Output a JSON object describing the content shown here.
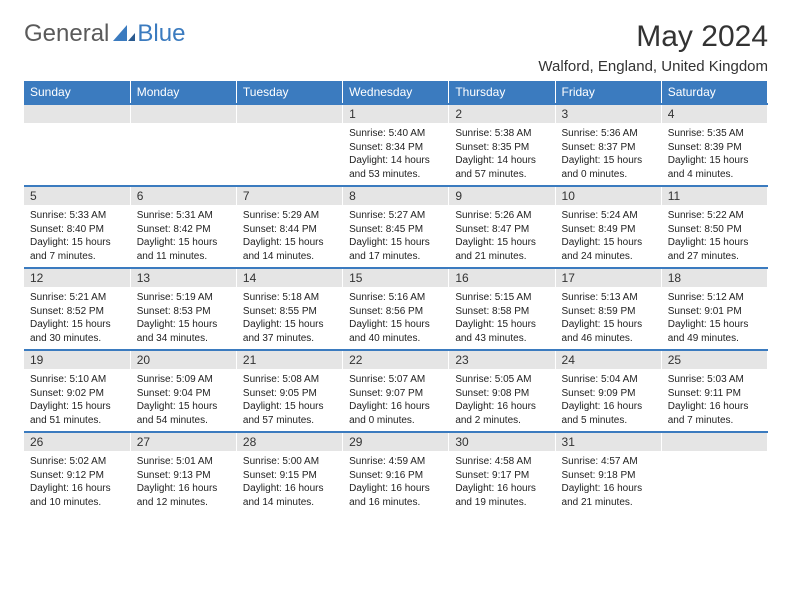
{
  "brand": {
    "text1": "General",
    "text2": "Blue"
  },
  "title": "May 2024",
  "location": "Walford, England, United Kingdom",
  "colors": {
    "header_bg": "#3b7bbf",
    "header_text": "#ffffff",
    "daynum_bg": "#e5e5e5",
    "rule": "#3b7bbf",
    "body_text": "#222222",
    "page_bg": "#ffffff"
  },
  "day_headers": [
    "Sunday",
    "Monday",
    "Tuesday",
    "Wednesday",
    "Thursday",
    "Friday",
    "Saturday"
  ],
  "weeks": [
    [
      null,
      null,
      null,
      {
        "n": "1",
        "sr": "5:40 AM",
        "ss": "8:34 PM",
        "dl": "14 hours and 53 minutes."
      },
      {
        "n": "2",
        "sr": "5:38 AM",
        "ss": "8:35 PM",
        "dl": "14 hours and 57 minutes."
      },
      {
        "n": "3",
        "sr": "5:36 AM",
        "ss": "8:37 PM",
        "dl": "15 hours and 0 minutes."
      },
      {
        "n": "4",
        "sr": "5:35 AM",
        "ss": "8:39 PM",
        "dl": "15 hours and 4 minutes."
      }
    ],
    [
      {
        "n": "5",
        "sr": "5:33 AM",
        "ss": "8:40 PM",
        "dl": "15 hours and 7 minutes."
      },
      {
        "n": "6",
        "sr": "5:31 AM",
        "ss": "8:42 PM",
        "dl": "15 hours and 11 minutes."
      },
      {
        "n": "7",
        "sr": "5:29 AM",
        "ss": "8:44 PM",
        "dl": "15 hours and 14 minutes."
      },
      {
        "n": "8",
        "sr": "5:27 AM",
        "ss": "8:45 PM",
        "dl": "15 hours and 17 minutes."
      },
      {
        "n": "9",
        "sr": "5:26 AM",
        "ss": "8:47 PM",
        "dl": "15 hours and 21 minutes."
      },
      {
        "n": "10",
        "sr": "5:24 AM",
        "ss": "8:49 PM",
        "dl": "15 hours and 24 minutes."
      },
      {
        "n": "11",
        "sr": "5:22 AM",
        "ss": "8:50 PM",
        "dl": "15 hours and 27 minutes."
      }
    ],
    [
      {
        "n": "12",
        "sr": "5:21 AM",
        "ss": "8:52 PM",
        "dl": "15 hours and 30 minutes."
      },
      {
        "n": "13",
        "sr": "5:19 AM",
        "ss": "8:53 PM",
        "dl": "15 hours and 34 minutes."
      },
      {
        "n": "14",
        "sr": "5:18 AM",
        "ss": "8:55 PM",
        "dl": "15 hours and 37 minutes."
      },
      {
        "n": "15",
        "sr": "5:16 AM",
        "ss": "8:56 PM",
        "dl": "15 hours and 40 minutes."
      },
      {
        "n": "16",
        "sr": "5:15 AM",
        "ss": "8:58 PM",
        "dl": "15 hours and 43 minutes."
      },
      {
        "n": "17",
        "sr": "5:13 AM",
        "ss": "8:59 PM",
        "dl": "15 hours and 46 minutes."
      },
      {
        "n": "18",
        "sr": "5:12 AM",
        "ss": "9:01 PM",
        "dl": "15 hours and 49 minutes."
      }
    ],
    [
      {
        "n": "19",
        "sr": "5:10 AM",
        "ss": "9:02 PM",
        "dl": "15 hours and 51 minutes."
      },
      {
        "n": "20",
        "sr": "5:09 AM",
        "ss": "9:04 PM",
        "dl": "15 hours and 54 minutes."
      },
      {
        "n": "21",
        "sr": "5:08 AM",
        "ss": "9:05 PM",
        "dl": "15 hours and 57 minutes."
      },
      {
        "n": "22",
        "sr": "5:07 AM",
        "ss": "9:07 PM",
        "dl": "16 hours and 0 minutes."
      },
      {
        "n": "23",
        "sr": "5:05 AM",
        "ss": "9:08 PM",
        "dl": "16 hours and 2 minutes."
      },
      {
        "n": "24",
        "sr": "5:04 AM",
        "ss": "9:09 PM",
        "dl": "16 hours and 5 minutes."
      },
      {
        "n": "25",
        "sr": "5:03 AM",
        "ss": "9:11 PM",
        "dl": "16 hours and 7 minutes."
      }
    ],
    [
      {
        "n": "26",
        "sr": "5:02 AM",
        "ss": "9:12 PM",
        "dl": "16 hours and 10 minutes."
      },
      {
        "n": "27",
        "sr": "5:01 AM",
        "ss": "9:13 PM",
        "dl": "16 hours and 12 minutes."
      },
      {
        "n": "28",
        "sr": "5:00 AM",
        "ss": "9:15 PM",
        "dl": "16 hours and 14 minutes."
      },
      {
        "n": "29",
        "sr": "4:59 AM",
        "ss": "9:16 PM",
        "dl": "16 hours and 16 minutes."
      },
      {
        "n": "30",
        "sr": "4:58 AM",
        "ss": "9:17 PM",
        "dl": "16 hours and 19 minutes."
      },
      {
        "n": "31",
        "sr": "4:57 AM",
        "ss": "9:18 PM",
        "dl": "16 hours and 21 minutes."
      },
      null
    ]
  ],
  "labels": {
    "sunrise": "Sunrise:",
    "sunset": "Sunset:",
    "daylight": "Daylight:"
  }
}
